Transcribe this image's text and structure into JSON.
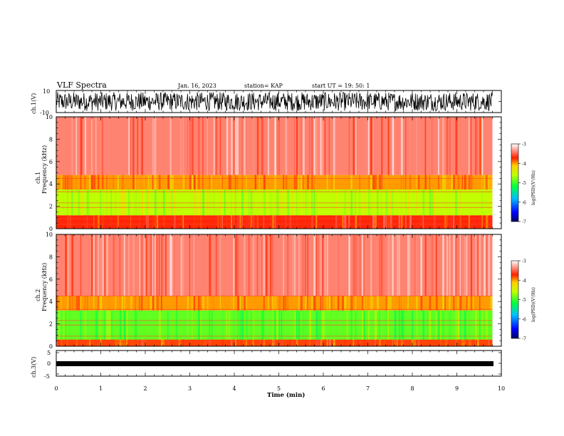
{
  "header": {
    "title": "VLF Spectra",
    "date": "Jan. 16, 2023",
    "station": "station= KAP",
    "start_ut": "start  UT =   19: 50: 1"
  },
  "chart_data": [
    {
      "type": "line",
      "name": "ch1-waveform",
      "ylabel": "ch.1(V)",
      "ylim": [
        -10,
        10
      ],
      "y_tick_labels": [
        "10",
        "-10"
      ],
      "note": "dense black noise waveform filling roughly -8..+8 V",
      "x_range_min": [
        0,
        9.8
      ]
    },
    {
      "type": "heatmap",
      "name": "ch1-spectrogram",
      "ylabel": "ch.1\nFrequency  (kHz)",
      "ylim": [
        0,
        10
      ],
      "y_ticks": [
        0,
        2,
        4,
        6,
        8,
        10
      ],
      "x_range_min": [
        0,
        9.8
      ],
      "colorbar": {
        "label": "log(PSD)(V²/Hz)",
        "range": [
          -7,
          -3
        ],
        "ticks": [
          "-3",
          "-4",
          "-5",
          "-6",
          "-7"
        ]
      },
      "bands_khz": [
        {
          "from": 0.0,
          "to": 1.2,
          "level": -3.7
        },
        {
          "from": 1.2,
          "to": 3.5,
          "level": -4.6
        },
        {
          "from": 3.5,
          "to": 4.8,
          "level": -4.0
        },
        {
          "from": 4.8,
          "to": 10.0,
          "level": -3.4
        }
      ]
    },
    {
      "type": "heatmap",
      "name": "ch2-spectrogram",
      "ylabel": "ch.2\nFrequency  (kHz)",
      "ylim": [
        0,
        10
      ],
      "y_ticks": [
        0,
        2,
        4,
        6,
        8,
        10
      ],
      "x_range_min": [
        0,
        9.8
      ],
      "colorbar": {
        "label": "log(PSD)(V²/Hz)",
        "range": [
          -7,
          -3
        ],
        "ticks": [
          "-3",
          "-4",
          "-5",
          "-6",
          "-7"
        ]
      },
      "bands_khz": [
        {
          "from": 0.0,
          "to": 0.6,
          "level": -3.8
        },
        {
          "from": 0.6,
          "to": 3.2,
          "level": -4.9
        },
        {
          "from": 3.2,
          "to": 4.5,
          "level": -4.0
        },
        {
          "from": 4.5,
          "to": 10.0,
          "level": -3.4
        }
      ]
    },
    {
      "type": "line",
      "name": "ch3-waveform",
      "ylabel": "ch.3(V)",
      "ylim": [
        -5,
        5
      ],
      "y_tick_labels": [
        "5",
        "0",
        "-5"
      ],
      "note": "flat thick black trace near -1 V",
      "x_range_min": [
        0,
        9.8
      ]
    }
  ],
  "x_axis": {
    "label": "Time  (min)",
    "range": [
      0,
      10
    ],
    "ticks": [
      "0",
      "1",
      "2",
      "3",
      "4",
      "5",
      "6",
      "7",
      "8",
      "9",
      "10"
    ]
  }
}
